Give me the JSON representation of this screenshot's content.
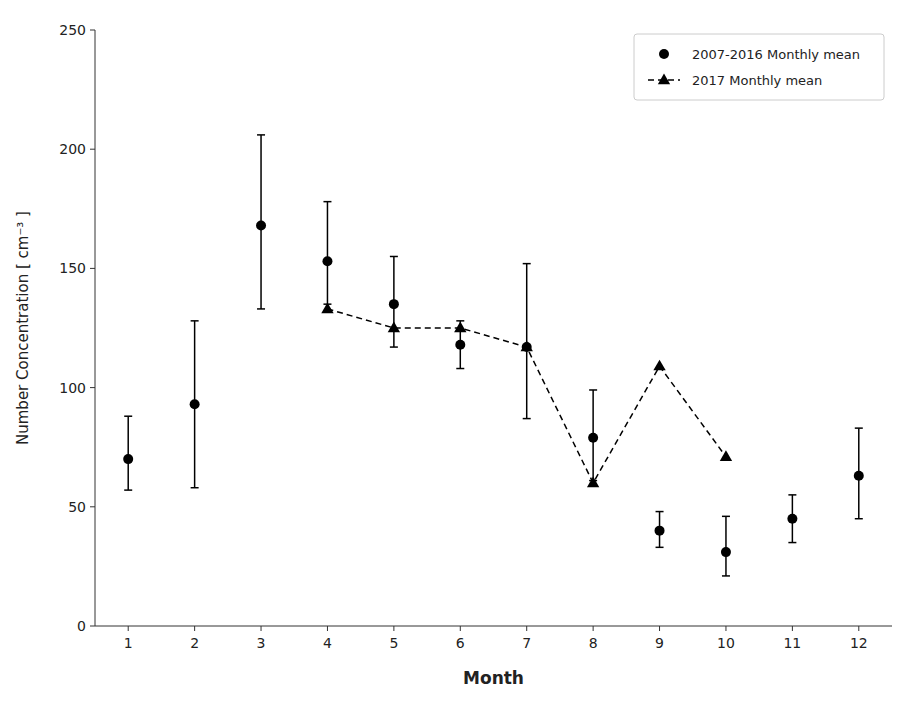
{
  "chart_data": {
    "type": "line",
    "xlabel": "Month",
    "ylabel": "Number Concentration [ cm⁻³ ]",
    "x": [
      1,
      2,
      3,
      4,
      5,
      6,
      7,
      8,
      9,
      10,
      11,
      12
    ],
    "series": [
      {
        "name": "2007-2016 Monthly mean",
        "type": "scatter",
        "marker": "circle",
        "color": "black",
        "values": [
          70,
          93,
          168,
          153,
          135,
          118,
          117,
          79,
          40,
          31,
          45,
          63
        ],
        "error_upper": [
          18,
          35,
          38,
          25,
          20,
          10,
          35,
          20,
          8,
          15,
          10,
          20
        ],
        "error_lower": [
          13,
          35,
          35,
          18,
          18,
          10,
          30,
          18,
          7,
          10,
          10,
          18
        ]
      },
      {
        "name": "2017 Monthly mean",
        "type": "line",
        "marker": "triangle",
        "line_style": "dashed",
        "color": "black",
        "values": [
          null,
          null,
          null,
          133,
          125,
          125,
          117,
          60,
          109,
          71,
          null,
          null
        ]
      }
    ],
    "xlim": [
      0.5,
      12.5
    ],
    "ylim": [
      0,
      250
    ],
    "xticks": [
      1,
      2,
      3,
      4,
      5,
      6,
      7,
      8,
      9,
      10,
      11,
      12
    ],
    "yticks": [
      0,
      50,
      100,
      150,
      200,
      250
    ],
    "legend": "upper right",
    "grid": false
  }
}
